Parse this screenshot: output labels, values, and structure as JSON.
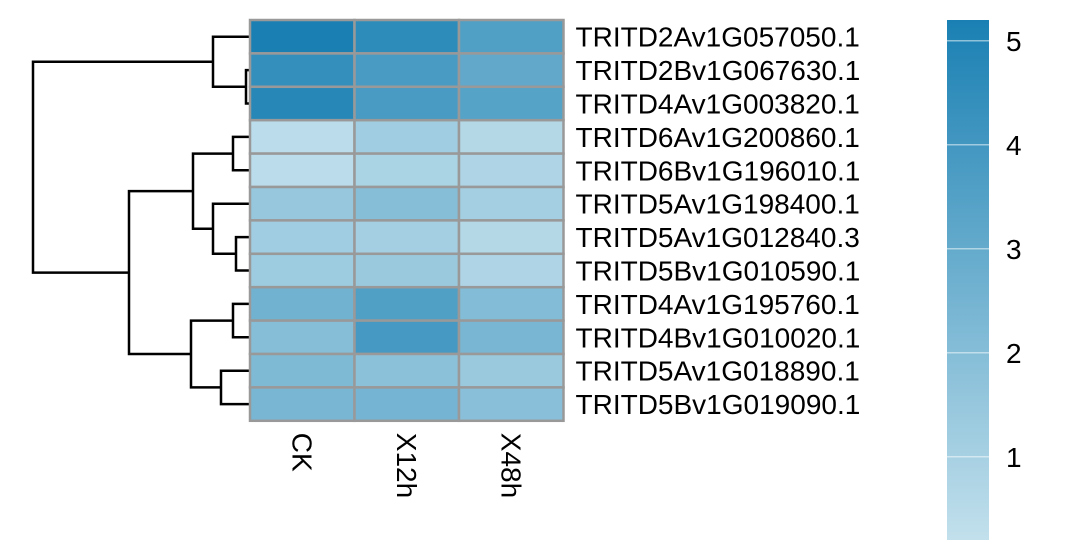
{
  "chart_data": {
    "type": "heatmap",
    "rows": [
      "TRITD2Av1G057050.1",
      "TRITD2Bv1G067630.1",
      "TRITD4Av1G003820.1",
      "TRITD6Av1G200860.1",
      "TRITD6Bv1G196010.1",
      "TRITD5Av1G198400.1",
      "TRITD5Av1G012840.3",
      "TRITD5Bv1G010590.1",
      "TRITD4Av1G195760.1",
      "TRITD4Bv1G010020.1",
      "TRITD5Av1G018890.1",
      "TRITD5Bv1G019090.1"
    ],
    "columns": [
      "CK",
      "X12h",
      "X48h"
    ],
    "values": [
      [
        5.2,
        4.6,
        3.6
      ],
      [
        4.4,
        3.8,
        3.1
      ],
      [
        4.8,
        3.8,
        3.4
      ],
      [
        0.4,
        1.2,
        0.6
      ],
      [
        0.4,
        0.9,
        0.8
      ],
      [
        1.5,
        2.0,
        1.1
      ],
      [
        1.2,
        1.1,
        0.6
      ],
      [
        1.3,
        1.4,
        0.8
      ],
      [
        2.6,
        3.6,
        2.1
      ],
      [
        2.0,
        3.9,
        2.4
      ],
      [
        2.2,
        1.8,
        1.4
      ],
      [
        2.4,
        2.5,
        1.9
      ]
    ],
    "colorbar": {
      "ticks": [
        1,
        2,
        3,
        4,
        5
      ],
      "range": [
        0.2,
        5.2
      ],
      "color_low": "#c2e0ec",
      "color_high": "#1a80b3"
    },
    "grid_color": "#999999",
    "row_dendrogram": true
  }
}
